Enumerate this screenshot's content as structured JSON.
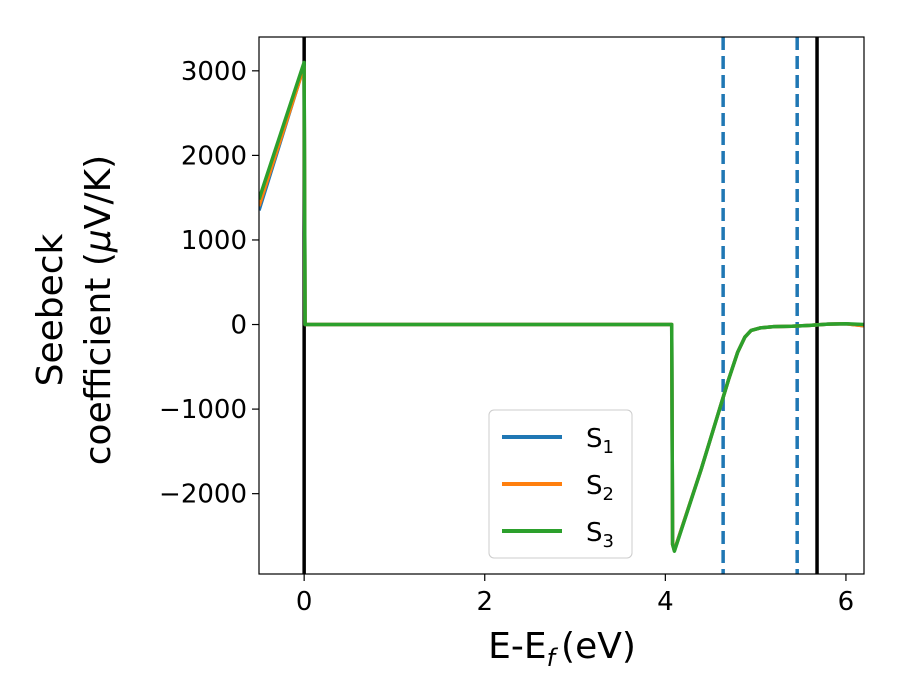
{
  "chart_data": {
    "type": "line",
    "xlabel": "E-E",
    "xlabel_sub": "f",
    "xlabel_unit": "(eV)",
    "ylabel_line1": "Seebeck",
    "ylabel_line2_text": "coefficient  (",
    "ylabel_mu": "μ",
    "ylabel_unit": "V/K)",
    "xlim": [
      -0.5,
      6.2
    ],
    "ylim": [
      -2950,
      3400
    ],
    "xticks": [
      0,
      2,
      4,
      6
    ],
    "xtick_labels": [
      "0",
      "2",
      "4",
      "6"
    ],
    "yticks": [
      3000,
      2000,
      1000,
      0,
      -1000,
      -2000
    ],
    "ytick_labels": [
      "3000",
      "2000",
      "1000",
      "0",
      "−1000",
      "−2000"
    ],
    "legend_placement": "lower-center",
    "series": [
      {
        "name": "S",
        "sub": "1",
        "color": "#1f77b4",
        "x": [
          -0.5,
          0.0,
          0.01,
          4.07,
          4.08,
          4.1,
          4.4,
          4.7,
          4.8,
          4.88,
          4.95,
          5.05,
          5.2,
          5.4,
          5.6,
          5.8,
          6.0,
          6.2
        ],
        "y": [
          1350,
          3060,
          0,
          0,
          -2600,
          -2670,
          -1700,
          -650,
          -330,
          -150,
          -70,
          -40,
          -25,
          -20,
          -10,
          5,
          10,
          -15
        ]
      },
      {
        "name": "S",
        "sub": "2",
        "color": "#ff7f0e",
        "x": [
          -0.5,
          0.0,
          0.01,
          4.07,
          4.08,
          4.1,
          4.4,
          4.7,
          4.8,
          4.88,
          4.95,
          5.05,
          5.2,
          5.4,
          5.6,
          5.8,
          6.0,
          6.2
        ],
        "y": [
          1400,
          3050,
          0,
          0,
          -2600,
          -2670,
          -1700,
          -650,
          -330,
          -150,
          -70,
          -40,
          -25,
          -20,
          -10,
          5,
          10,
          -15
        ]
      },
      {
        "name": "S",
        "sub": "3",
        "color": "#2ca02c",
        "x": [
          -0.5,
          0.0,
          0.01,
          4.07,
          4.08,
          4.1,
          4.4,
          4.7,
          4.8,
          4.88,
          4.95,
          5.05,
          5.2,
          5.4,
          5.6,
          5.8,
          6.0,
          6.2
        ],
        "y": [
          1480,
          3100,
          0,
          0,
          -2600,
          -2680,
          -1700,
          -650,
          -330,
          -150,
          -70,
          -40,
          -25,
          -20,
          -10,
          5,
          10,
          0
        ]
      }
    ],
    "vertical_lines": [
      {
        "x": 0.0,
        "style": "solid",
        "color": "#000000"
      },
      {
        "x": 5.68,
        "style": "solid",
        "color": "#000000"
      },
      {
        "x": 4.64,
        "style": "dashed",
        "color": "#1f77b4"
      },
      {
        "x": 5.46,
        "style": "dashed",
        "color": "#1f77b4"
      }
    ]
  }
}
